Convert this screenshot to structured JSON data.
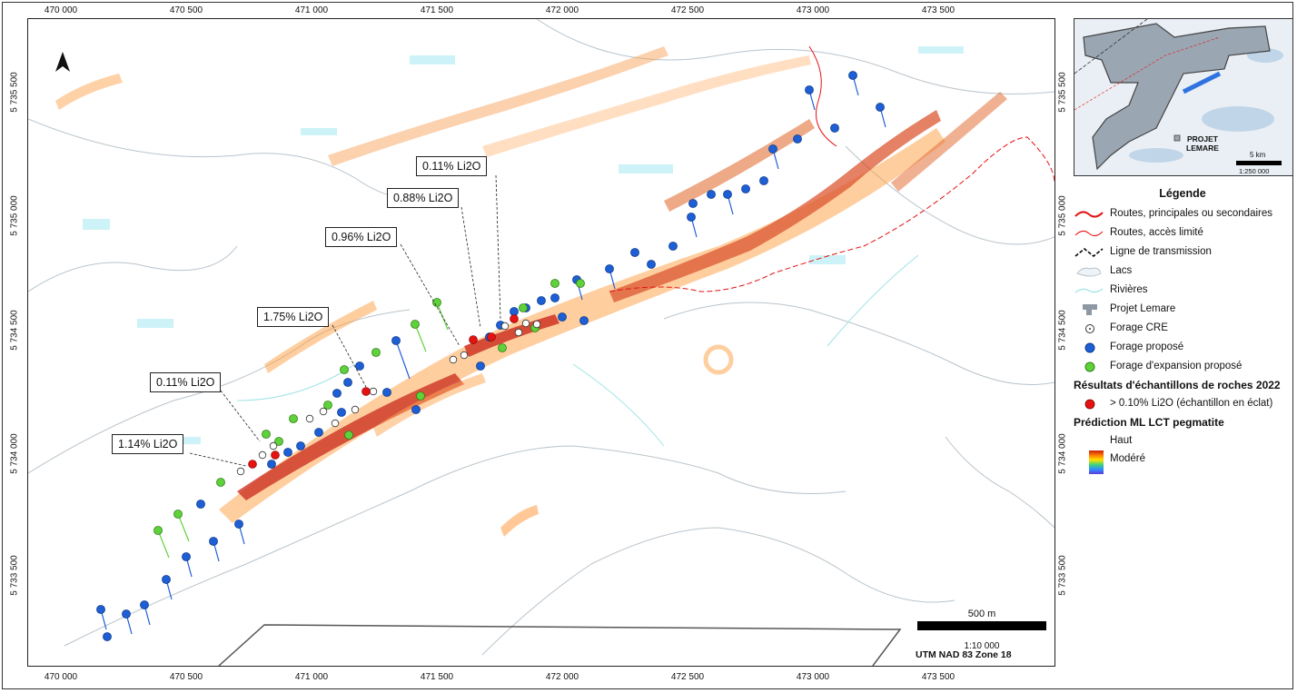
{
  "map": {
    "x_ticks": [
      "470 000",
      "470 500",
      "471 000",
      "471 500",
      "472 000",
      "472 500",
      "473 000",
      "473 500"
    ],
    "y_ticks": [
      "5 735 500",
      "5 735 000",
      "5 734 500",
      "5 734 000",
      "5 733 500"
    ],
    "callouts": [
      "0.11% Li2O",
      "0.88% Li2O",
      "0.96% Li2O",
      "1.75% Li2O",
      "0.11% Li2O",
      "1.14% Li2O"
    ],
    "scale_label": "500 m",
    "scale_ratio": "1:10 000",
    "projection": "UTM NAD 83 Zone 18"
  },
  "inset": {
    "label": "PROJET LEMARE",
    "scale_km": "5 km",
    "scale_ratio": "1:250 000"
  },
  "legend": {
    "title": "Légende",
    "items": [
      "Routes, principales ou secondaires",
      "Routes, accès limité",
      "Ligne de transmission",
      "Lacs",
      "Rivières",
      "Projet Lemare",
      "Forage CRE",
      "Forage proposé",
      "Forage d'expansion proposé"
    ],
    "samples_heading": "Résultats d'échantillons de roches 2022",
    "samples_item": "> 0.10% Li2O (échantillon en éclat)",
    "prediction_heading": "Prédiction ML LCT pegmatite",
    "ramp_high": "Haut",
    "ramp_moderate": "Modéré"
  },
  "colors": {
    "prediction_high": "#c81d0a",
    "prediction_mid": "#ff7b00",
    "prediction_low": "#2f8dff",
    "proposed_drill": "#1e5fd6",
    "expansion_drill": "#5fd23b",
    "sample": "#e41212",
    "road_main": "#e41212"
  }
}
